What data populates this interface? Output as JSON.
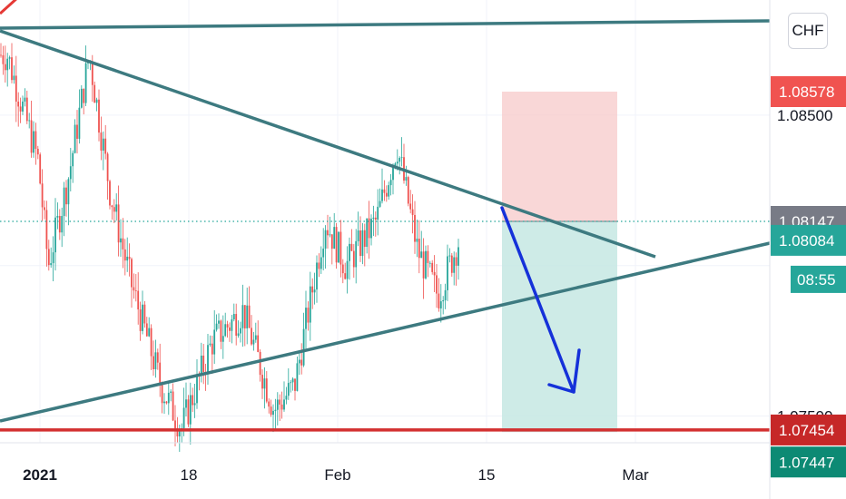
{
  "currency_label": "CHF",
  "colors": {
    "up": "#26a69a",
    "down": "#ef5350",
    "trendline": "#3d7a80",
    "stop_zone": "#f7caca",
    "target_zone": "#c5e8e3",
    "arrow": "#1531d9",
    "support": "#d32f2f"
  },
  "chart_data": {
    "type": "candlestick",
    "title": "",
    "y_axis": {
      "side": "right",
      "ticks": [
        {
          "value": 1.085,
          "label": "1.08500"
        },
        {
          "value": 1.075,
          "label": "1.07500"
        }
      ]
    },
    "x_axis": {
      "ticks": [
        {
          "label": "2021",
          "bold": true
        },
        {
          "label": "18",
          "bold": false
        },
        {
          "label": "Feb",
          "bold": false
        },
        {
          "label": "15",
          "bold": false
        },
        {
          "label": "Mar",
          "bold": false
        }
      ]
    },
    "price_labels": [
      {
        "value": 1.08578,
        "label": "1.08578",
        "role": "stop-loss",
        "color": "#f05350"
      },
      {
        "value": 1.08147,
        "label": "1.08147",
        "role": "entry",
        "color": "#787b86"
      },
      {
        "value": 1.08084,
        "label": "1.08084",
        "role": "last-price",
        "color": "#26a69a"
      },
      {
        "value": 1.07454,
        "label": "1.07454",
        "role": "support",
        "color": "#c62828"
      },
      {
        "value": 1.07447,
        "label": "1.07447",
        "role": "take-profit",
        "color": "#0d8a74"
      }
    ],
    "countdown": "08:55",
    "current_price": 1.08084,
    "price_path_key_points": [
      {
        "date": "2021-01-01",
        "price": 1.087
      },
      {
        "date": "2021-01-04",
        "price": 1.0835
      },
      {
        "date": "2021-01-05",
        "price": 1.08
      },
      {
        "date": "2021-01-07",
        "price": 1.083
      },
      {
        "date": "2021-01-09",
        "price": 1.087
      },
      {
        "date": "2021-01-11",
        "price": 1.0825
      },
      {
        "date": "2021-01-13",
        "price": 1.0795
      },
      {
        "date": "2021-01-16",
        "price": 1.076
      },
      {
        "date": "2021-01-18",
        "price": 1.0746
      },
      {
        "date": "2021-01-21",
        "price": 1.0775
      },
      {
        "date": "2021-01-24",
        "price": 1.0785
      },
      {
        "date": "2021-01-27",
        "price": 1.0752
      },
      {
        "date": "2021-01-29",
        "price": 1.076
      },
      {
        "date": "2021-02-01",
        "price": 1.0815
      },
      {
        "date": "2021-02-03",
        "price": 1.08
      },
      {
        "date": "2021-02-06",
        "price": 1.0815
      },
      {
        "date": "2021-02-08",
        "price": 1.084
      },
      {
        "date": "2021-02-10",
        "price": 1.0805
      },
      {
        "date": "2021-02-12",
        "price": 1.079
      },
      {
        "date": "2021-02-14",
        "price": 1.0808
      }
    ],
    "drawings": {
      "upper_horizontal_trendline": "resistance",
      "descending_trendline": "resistance",
      "ascending_trendline": "support",
      "horizontal_support_line": 1.07454,
      "short_position": {
        "entry": 1.08147,
        "stop": 1.08578,
        "target": 1.07447
      },
      "projection_arrow": "down"
    }
  }
}
